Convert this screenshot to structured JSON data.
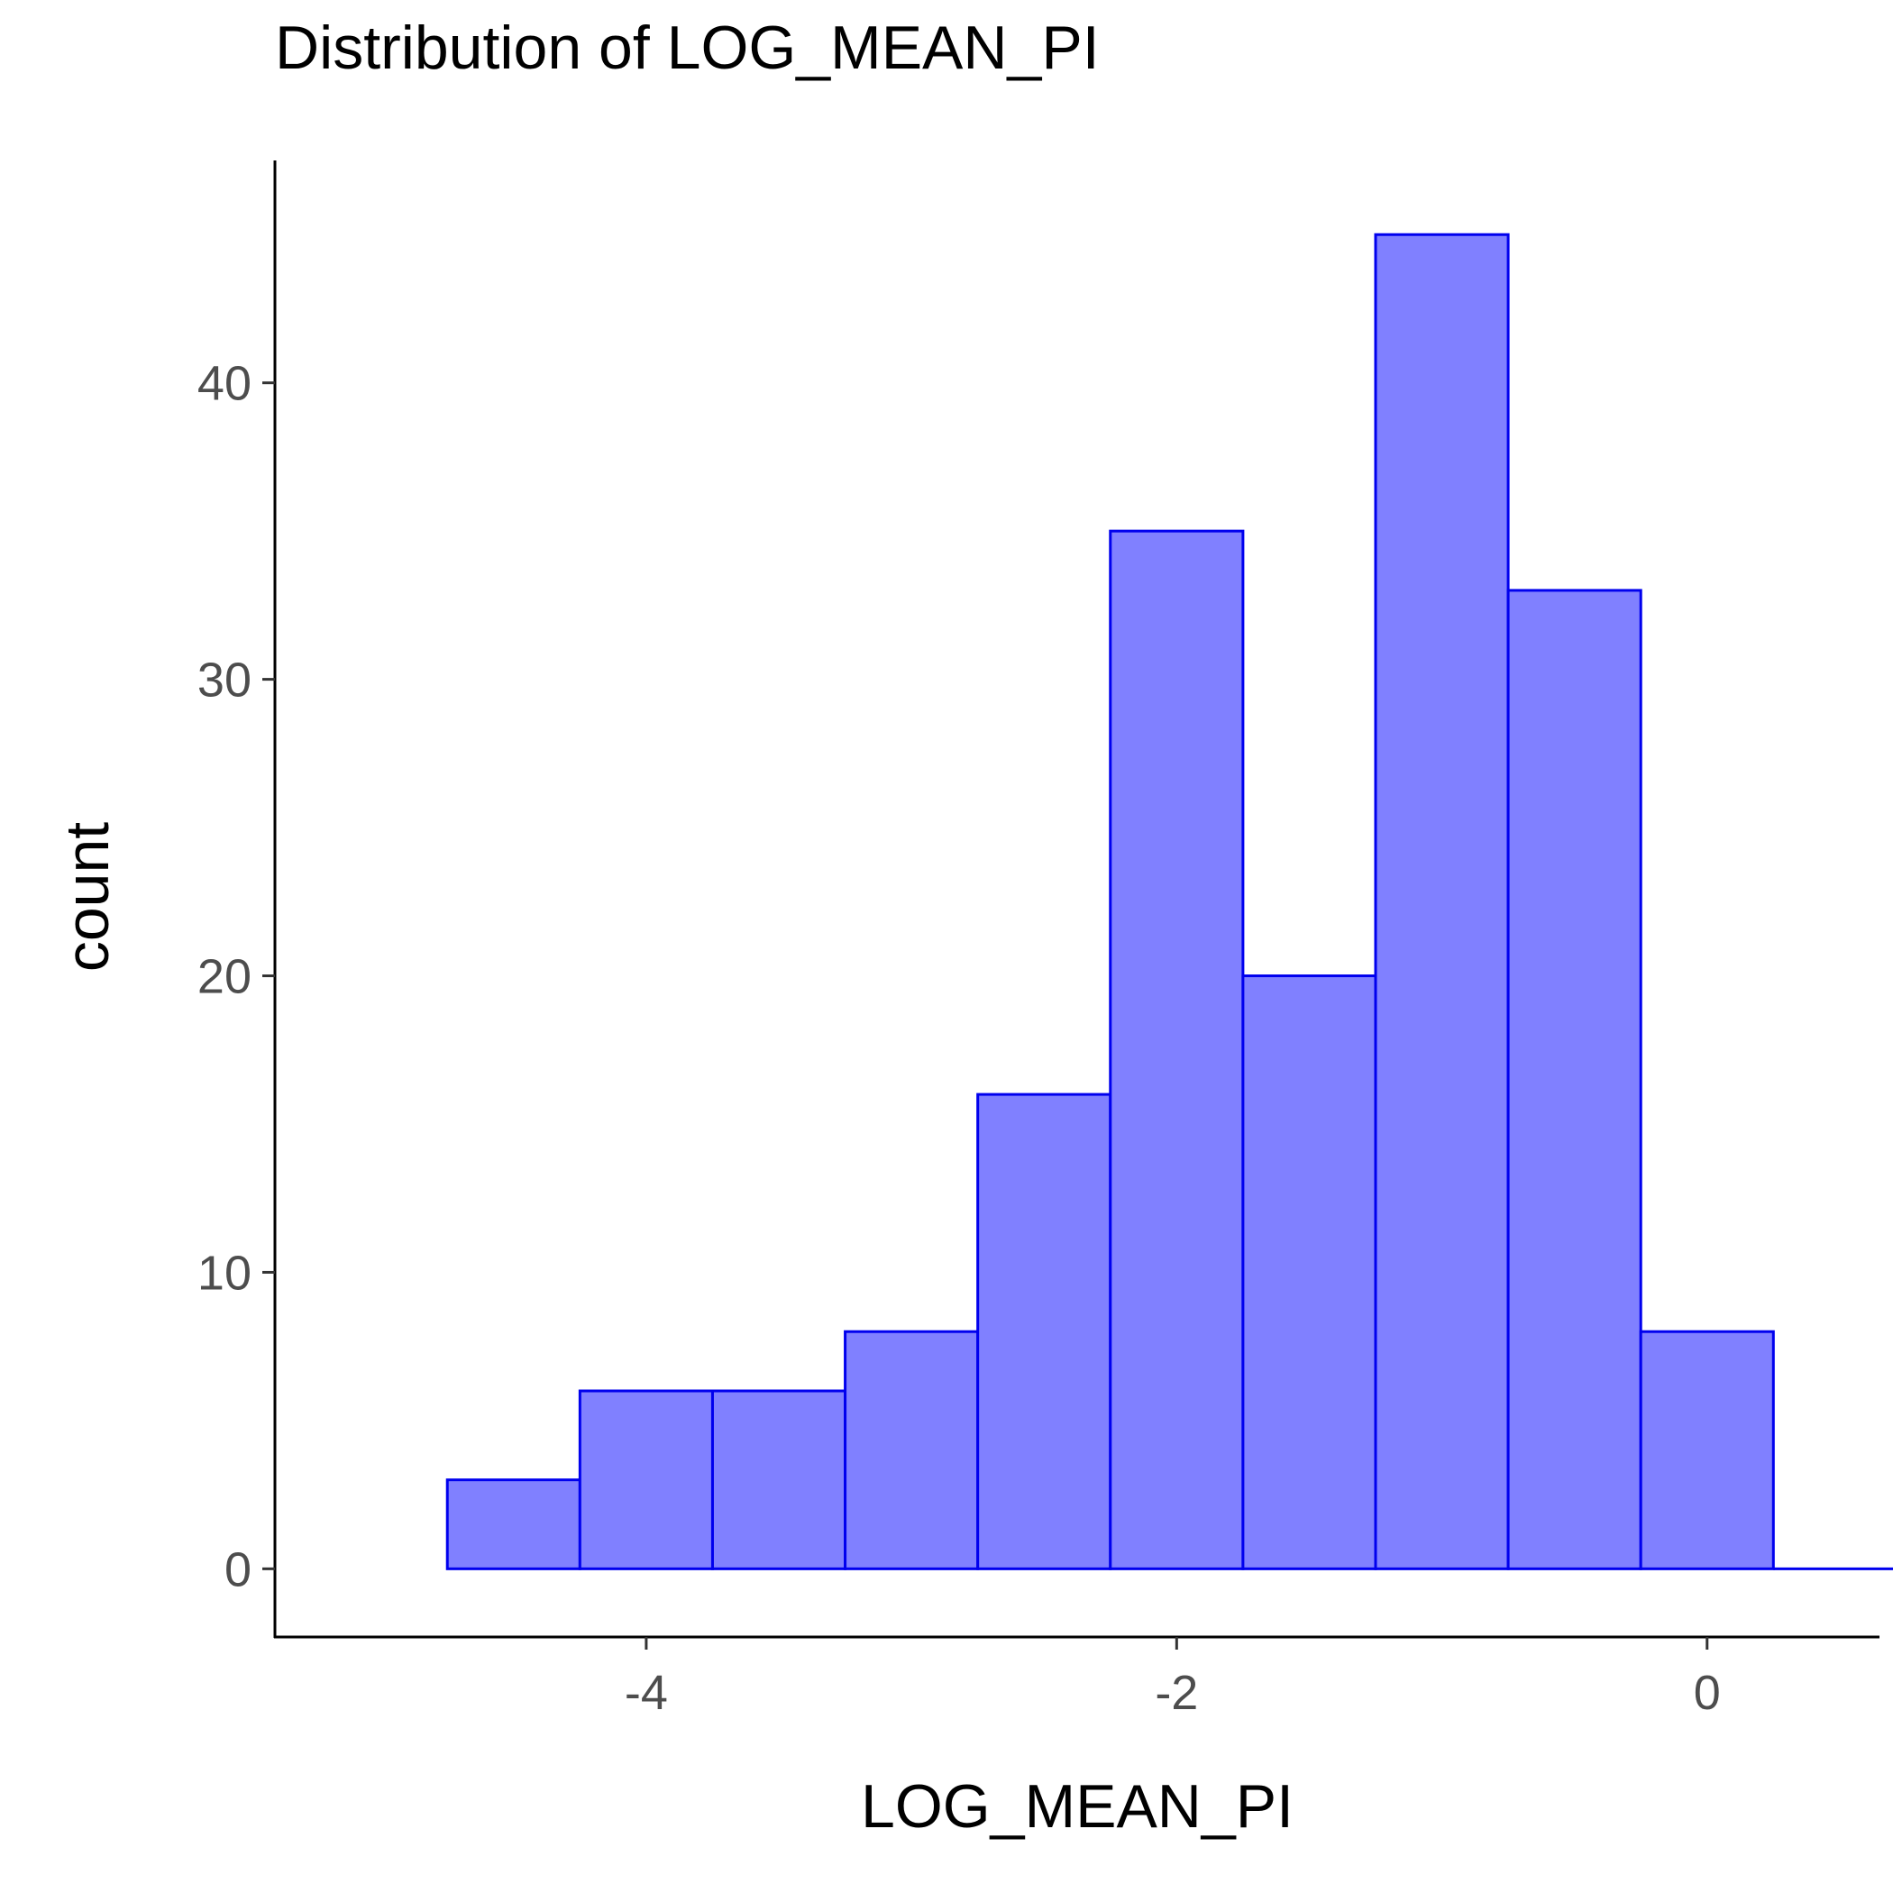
{
  "chart_data": {
    "type": "bar",
    "title": "Distribution of LOG_MEAN_PI",
    "xlabel": "LOG_MEAN_PI",
    "ylabel": "count",
    "bin_width": 0.5,
    "bins": [
      {
        "x0": -4.75,
        "x1": -4.25,
        "count": 3
      },
      {
        "x0": -4.25,
        "x1": -3.75,
        "count": 6
      },
      {
        "x0": -3.75,
        "x1": -3.25,
        "count": 6
      },
      {
        "x0": -3.25,
        "x1": -2.75,
        "count": 8
      },
      {
        "x0": -2.75,
        "x1": -2.25,
        "count": 16
      },
      {
        "x0": -2.25,
        "x1": -1.75,
        "count": 35
      },
      {
        "x0": -1.75,
        "x1": -1.25,
        "count": 20
      },
      {
        "x0": -1.25,
        "x1": -0.75,
        "count": 45
      },
      {
        "x0": -0.75,
        "x1": -0.25,
        "count": 33
      },
      {
        "x0": -0.25,
        "x1": 0.25,
        "count": 8
      },
      {
        "x0": 0.25,
        "x1": 0.75,
        "count": 0
      }
    ],
    "xlim": [
      -5.4,
      0.65
    ],
    "ylim": [
      -2.3,
      47.5
    ],
    "xticks": [
      -4,
      -2,
      0
    ],
    "xtick_labels": [
      "-4",
      "-2",
      "0"
    ],
    "yticks": [
      0,
      10,
      20,
      30,
      40
    ],
    "ytick_labels": [
      "0",
      "10",
      "20",
      "30",
      "40"
    ],
    "grid": false,
    "legend": "none",
    "colors": {
      "bar_fill": "#8080ff",
      "bar_stroke": "#0000ee",
      "axis": "#000000",
      "tick_label": "#4d4d4d"
    }
  }
}
